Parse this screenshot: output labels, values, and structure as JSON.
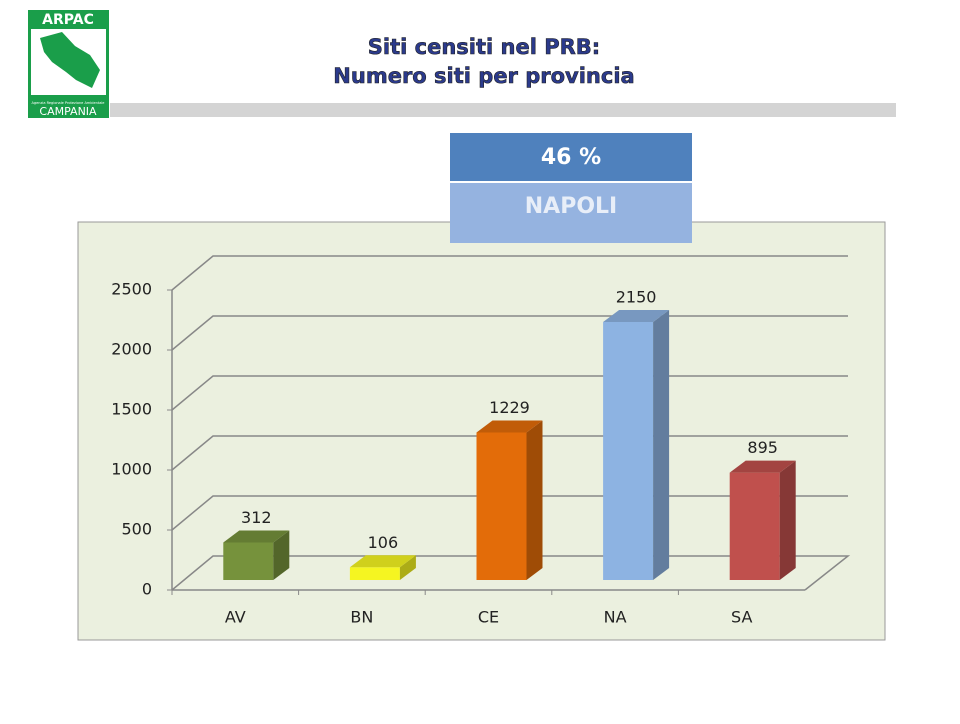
{
  "logo": {
    "top": "ARPAC",
    "small": "Agenzia Regionale Protezione Ambientale",
    "bottom": "CAMPANIA"
  },
  "callout": {
    "value": "46 %",
    "label": "NAPOLI"
  },
  "chart_data": {
    "type": "bar3d",
    "title": [
      "Siti censiti nel PRB:",
      "Numero siti per provincia"
    ],
    "categories": [
      "AV",
      "BN",
      "CE",
      "NA",
      "SA"
    ],
    "values": [
      312,
      106,
      1229,
      2150,
      895
    ],
    "colors": [
      "#76923c",
      "#f5f521",
      "#e36c09",
      "#8db3e2",
      "#c0504d"
    ],
    "ylim": [
      0,
      2500
    ],
    "yticks": [
      0,
      500,
      1000,
      1500,
      2000,
      2500
    ],
    "grid": true
  }
}
